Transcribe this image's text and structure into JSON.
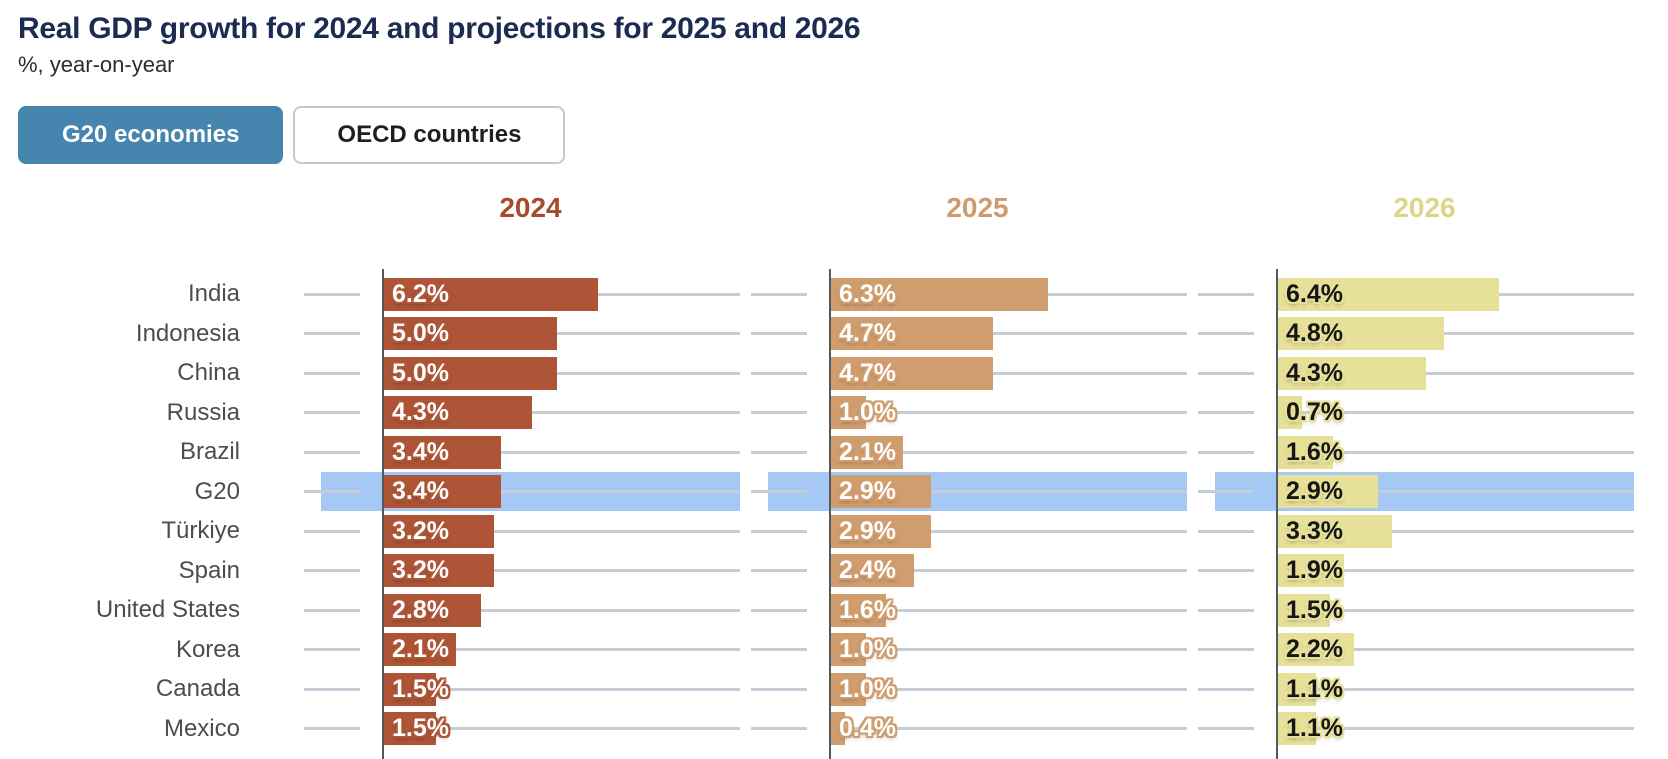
{
  "title": "Real GDP growth for 2024 and projections for 2025 and 2026",
  "subtitle": "%, year-on-year",
  "toggle": {
    "active_label": "G20 economies",
    "inactive_label": "OECD countries",
    "active_bg": "#4685ad"
  },
  "colors": {
    "title": "#1c2b50",
    "subtitle": "#2d2d2d",
    "row_label": "#4d4d4d",
    "gridline": "#c7cdd6",
    "axis": "#54595e",
    "highlight_band": "#a5c9f4",
    "background": "#ffffff"
  },
  "chart_data": {
    "type": "bar",
    "orientation": "horizontal",
    "grid": true,
    "xlim": [
      0,
      10
    ],
    "value_format": "{value}%",
    "categories": [
      "India",
      "Indonesia",
      "China",
      "Russia",
      "Brazil",
      "G20",
      "Türkiye",
      "Spain",
      "United States",
      "Korea",
      "Canada",
      "Mexico"
    ],
    "highlight_category": "G20",
    "highlight_color": "#a5c9f4",
    "series": [
      {
        "name": "2024",
        "header_color": "#a7492b",
        "bar_color": "#ad5536",
        "label_color": "#ffffff",
        "label_outline": "#ad5536",
        "values": [
          6.2,
          5.0,
          5.0,
          4.3,
          3.4,
          3.4,
          3.2,
          3.2,
          2.8,
          2.1,
          1.5,
          1.5
        ]
      },
      {
        "name": "2025",
        "header_color": "#cf9b6b",
        "bar_color": "#d09d6e",
        "label_color": "#ffffff",
        "label_outline": "#d09d6e",
        "values": [
          6.3,
          4.7,
          4.7,
          1.0,
          2.1,
          2.9,
          2.9,
          2.4,
          1.6,
          1.0,
          1.0,
          0.4
        ]
      },
      {
        "name": "2026",
        "header_color": "#dcd584",
        "bar_color": "#e6e099",
        "label_color": "#161616",
        "label_outline": "#e6e099",
        "values": [
          6.4,
          4.8,
          4.3,
          0.7,
          1.6,
          2.9,
          3.3,
          1.9,
          1.5,
          2.2,
          1.1,
          1.1
        ]
      }
    ]
  }
}
